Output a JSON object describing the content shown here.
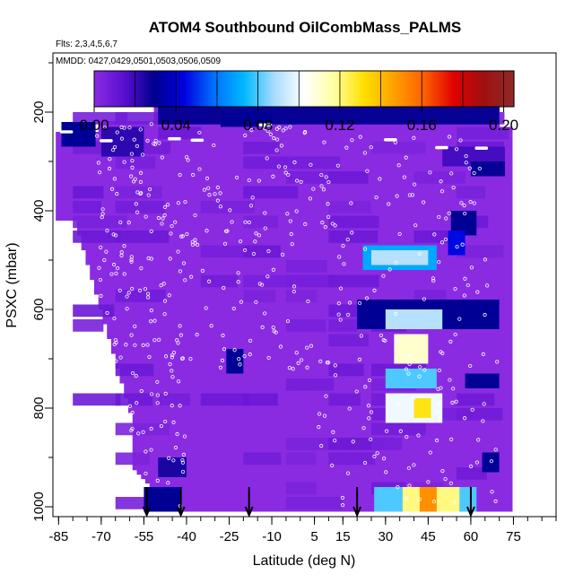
{
  "chart_data": {
    "type": "heatmap",
    "title": "ATOM4 Southbound OilCombMass_PALMS",
    "flights_label": "Flts: 2,3,4,5,6,7",
    "mmdd_label": "MMDD: 0427,0429,0501,0503,0506,0509",
    "xlabel": "Latitude (deg N)",
    "ylabel": "PSXC (mbar)",
    "xlim": [
      -87,
      90
    ],
    "ylim": [
      1020,
      80
    ],
    "x_ticks": [
      "-85",
      "-70",
      "-55",
      "-40",
      "-25",
      "-10",
      "5",
      "15",
      "30",
      "45",
      "60",
      "75"
    ],
    "x_tick_values": [
      -85,
      -70,
      -55,
      -40,
      -25,
      -10,
      5,
      15,
      30,
      45,
      60,
      75
    ],
    "y_ticks": [
      "200",
      "400",
      "600",
      "800",
      "1000"
    ],
    "y_tick_values": [
      200,
      400,
      600,
      800,
      1000
    ],
    "colorbar": {
      "range": [
        0,
        0.205
      ],
      "tick_labels": [
        "0.00",
        "0.04",
        "0.08",
        "0.12",
        "0.16",
        "0.20"
      ],
      "tick_values": [
        0,
        0.04,
        0.08,
        0.12,
        0.16,
        0.2
      ],
      "colors": [
        "#8a2be2",
        "#5a0fd0",
        "#000090",
        "#0000e0",
        "#0070ff",
        "#00b8ff",
        "#a8dcff",
        "#ffffff",
        "#ffffa0",
        "#ffe000",
        "#ffa000",
        "#ff6000",
        "#e00000",
        "#a01010",
        "#902a2a"
      ]
    },
    "background_value": 0.0,
    "cells": [
      {
        "lat": [
          -50,
          70
        ],
        "p": [
          188,
          225
        ],
        "value": 0.028
      },
      {
        "lat": [
          -84,
          -72
        ],
        "p": [
          220,
          270
        ],
        "value": 0.03
      },
      {
        "lat": [
          -70,
          -55
        ],
        "p": [
          230,
          290
        ],
        "value": 0.022
      },
      {
        "lat": [
          -28,
          -10
        ],
        "p": [
          200,
          230
        ],
        "value": 0.03
      },
      {
        "lat": [
          50,
          72
        ],
        "p": [
          270,
          310
        ],
        "value": 0.018
      },
      {
        "lat": [
          60,
          72
        ],
        "p": [
          300,
          330
        ],
        "value": 0.028
      },
      {
        "lat": [
          53,
          62
        ],
        "p": [
          400,
          450
        ],
        "value": 0.03
      },
      {
        "lat": [
          52,
          58
        ],
        "p": [
          440,
          490
        ],
        "value": 0.045
      },
      {
        "lat": [
          22,
          48
        ],
        "p": [
          470,
          520
        ],
        "value": 0.07
      },
      {
        "lat": [
          25,
          45
        ],
        "p": [
          480,
          510
        ],
        "value": 0.09
      },
      {
        "lat": [
          20,
          70
        ],
        "p": [
          580,
          640
        ],
        "value": 0.03
      },
      {
        "lat": [
          30,
          50
        ],
        "p": [
          600,
          640
        ],
        "value": 0.09
      },
      {
        "lat": [
          33,
          45
        ],
        "p": [
          650,
          710
        ],
        "value": 0.11
      },
      {
        "lat": [
          30,
          48
        ],
        "p": [
          720,
          760
        ],
        "value": 0.08
      },
      {
        "lat": [
          30,
          50
        ],
        "p": [
          770,
          830
        ],
        "value": 0.1
      },
      {
        "lat": [
          40,
          46
        ],
        "p": [
          780,
          820
        ],
        "value": 0.13
      },
      {
        "lat": [
          58,
          70
        ],
        "p": [
          730,
          760
        ],
        "value": 0.03
      },
      {
        "lat": [
          -26,
          -20
        ],
        "p": [
          680,
          730
        ],
        "value": 0.03
      },
      {
        "lat": [
          -50,
          -40
        ],
        "p": [
          900,
          940
        ],
        "value": 0.025
      },
      {
        "lat": [
          26,
          62
        ],
        "p": [
          960,
          1010
        ],
        "value": 0.08
      },
      {
        "lat": [
          36,
          56
        ],
        "p": [
          960,
          1010
        ],
        "value": 0.12
      },
      {
        "lat": [
          42,
          48
        ],
        "p": [
          960,
          1010
        ],
        "value": 0.15
      },
      {
        "lat": [
          -55,
          -42
        ],
        "p": [
          960,
          1010
        ],
        "value": 0.03
      },
      {
        "lat": [
          64,
          70
        ],
        "p": [
          890,
          930
        ],
        "value": 0.03
      }
    ],
    "flight_arrows_lat": [
      -54,
      -42,
      -18,
      20,
      60
    ],
    "points_per_panel": "white open circles at sample locations"
  }
}
